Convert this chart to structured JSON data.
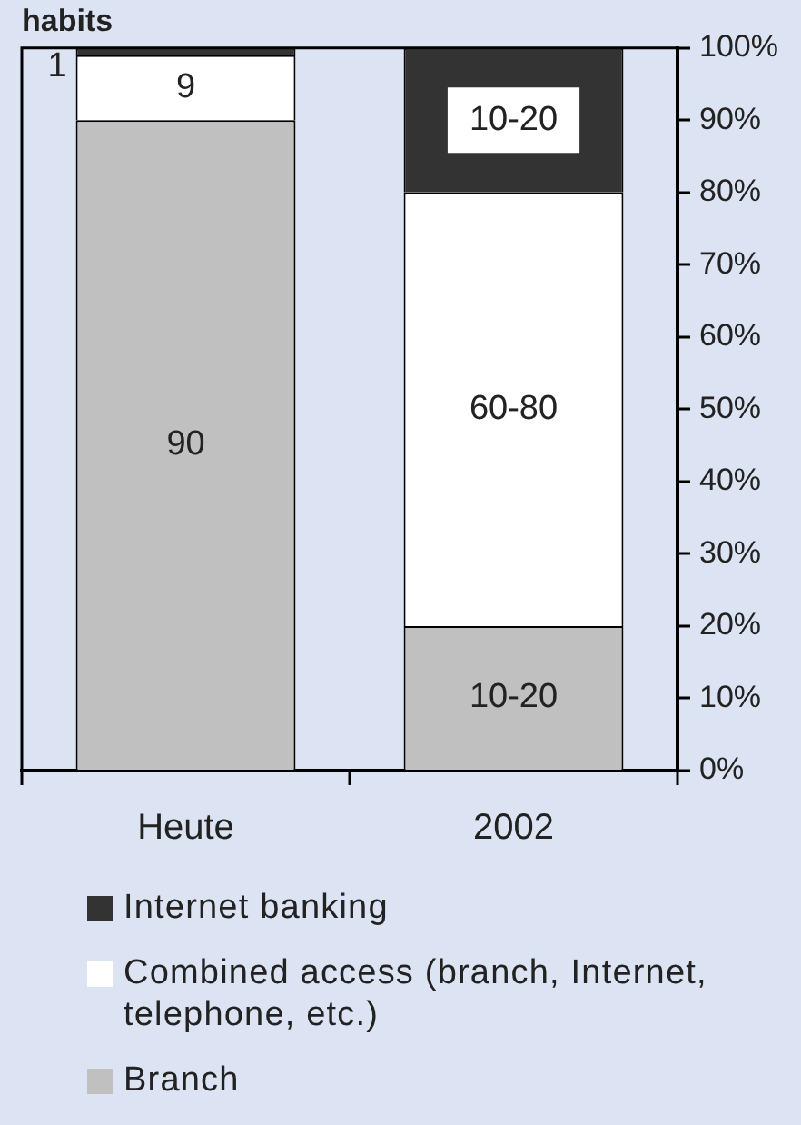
{
  "chart_data": {
    "type": "bar",
    "title": "habits",
    "categories": [
      "Heute",
      "2002"
    ],
    "stacked": true,
    "series": [
      {
        "name": "Branch",
        "color": "#c0c0c0",
        "values": [
          90,
          20
        ],
        "value_labels": [
          "90",
          "10-20"
        ]
      },
      {
        "name": "Combined access (branch, Internet, telephone, etc.)",
        "color": "#ffffff",
        "values": [
          9,
          60
        ],
        "value_labels": [
          "9",
          "60-80"
        ]
      },
      {
        "name": "Internet banking",
        "color": "#333333",
        "values": [
          1,
          20
        ],
        "value_labels": [
          "1",
          "10-20"
        ]
      }
    ],
    "ylim": [
      0,
      100
    ],
    "yticks": [
      {
        "value": 0,
        "label": "0%"
      },
      {
        "value": 10,
        "label": "10%"
      },
      {
        "value": 20,
        "label": "20%"
      },
      {
        "value": 30,
        "label": "30%"
      },
      {
        "value": 40,
        "label": "40%"
      },
      {
        "value": 50,
        "label": "50%"
      },
      {
        "value": 60,
        "label": "60%"
      },
      {
        "value": 70,
        "label": "70%"
      },
      {
        "value": 80,
        "label": "80%"
      },
      {
        "value": 90,
        "label": "90%"
      },
      {
        "value": 100,
        "label": "100%"
      }
    ],
    "legend": "bottom"
  }
}
